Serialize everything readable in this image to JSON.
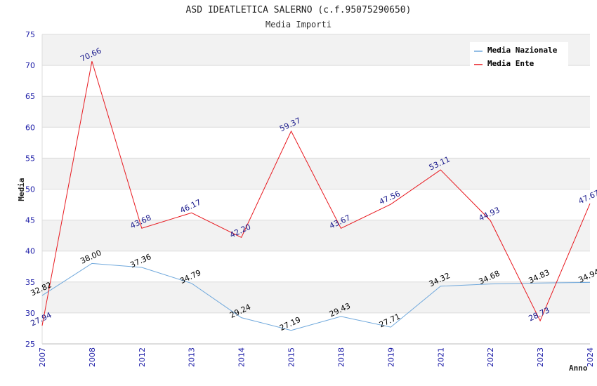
{
  "chart_data": {
    "type": "line",
    "title": "ASD IDEATLETICA SALERNO (c.f.95075290650)",
    "subtitle": "Media Importi",
    "xlabel": "Anno",
    "ylabel": "Media",
    "ylim": [
      25,
      75
    ],
    "yticks": [
      25,
      30,
      35,
      40,
      45,
      50,
      55,
      60,
      65,
      70,
      75
    ],
    "categories": [
      "2007",
      "2008",
      "2012",
      "2013",
      "2014",
      "2015",
      "2018",
      "2019",
      "2021",
      "2022",
      "2023",
      "2024"
    ],
    "grid": true,
    "legend_position": "top-right",
    "series": [
      {
        "name": "Media Nazionale",
        "color": "#6fa8dc",
        "label_color": "#000000",
        "values": [
          32.82,
          38.0,
          37.36,
          34.79,
          29.24,
          27.19,
          29.43,
          27.71,
          34.32,
          34.68,
          34.83,
          34.94
        ],
        "labels": [
          "32.82",
          "38.00",
          "37.36",
          "34.79",
          "29.24",
          "27.19",
          "29.43",
          "27.71",
          "34.32",
          "34.68",
          "34.83",
          "34.94"
        ]
      },
      {
        "name": "Media Ente",
        "color": "#e8191f",
        "label_color": "#1a1a8c",
        "values": [
          27.94,
          70.66,
          43.68,
          46.17,
          42.2,
          59.37,
          43.67,
          47.56,
          53.11,
          44.93,
          28.73,
          47.67
        ],
        "labels": [
          "27.94",
          "70.66",
          "43.68",
          "46.17",
          "42.20",
          "59.37",
          "43.67",
          "47.56",
          "53.11",
          "44.93",
          "28.73",
          "47.67"
        ]
      }
    ]
  }
}
